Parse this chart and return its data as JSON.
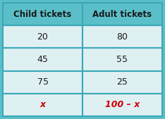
{
  "headers": [
    "Child tickets",
    "Adult tickets"
  ],
  "rows": [
    [
      "20",
      "80"
    ],
    [
      "45",
      "55"
    ],
    [
      "75",
      "25"
    ],
    [
      "x",
      "100 – x"
    ]
  ],
  "header_bg": "#5bbfc9",
  "row_bg": "#dff0f3",
  "border_color": "#3aa8b8",
  "header_text_color": "#1a1a1a",
  "row_text_color": "#1a1a1a",
  "last_row_text_color": "#cc0000",
  "header_fontsize": 8.5,
  "row_fontsize": 9,
  "fig_bg": "#5bbfc9"
}
